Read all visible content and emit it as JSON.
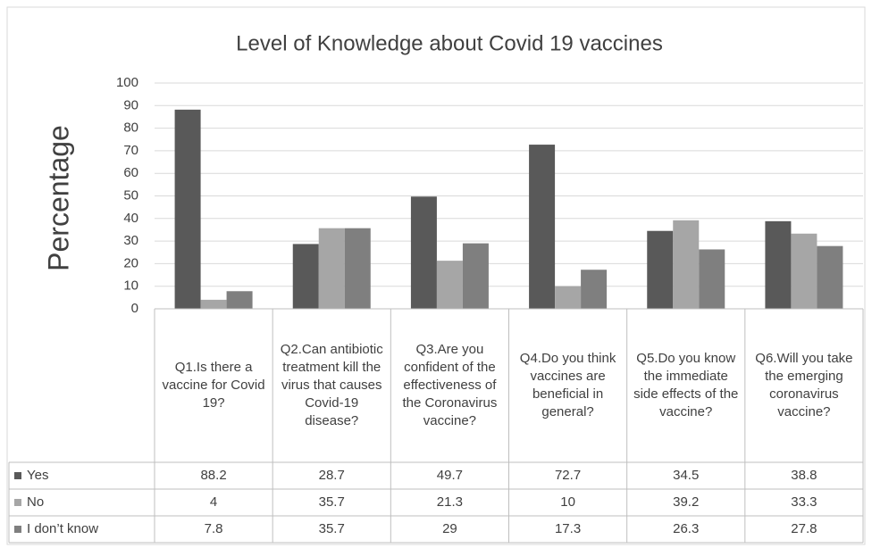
{
  "chart_data": {
    "type": "bar",
    "title": "Level of Knowledge about  Covid 19 vaccines",
    "y_label": "Percentage",
    "categories": [
      "Q1.Is there a vaccine for Covid 19?",
      "Q2.Can antibiotic treatment kill the virus that causes Covid-19 disease?",
      "Q3.Are you confident of the effectiveness of the Coronavirus vaccine?",
      "Q4.Do you think vaccines are beneficial in general?",
      "Q5.Do you know the immediate side effects of the vaccine?",
      "Q6.Will you take the emerging coronavirus vaccine?"
    ],
    "series": [
      {
        "name": "Yes",
        "color": "#595959",
        "values": [
          88.2,
          28.7,
          49.7,
          72.7,
          34.5,
          38.8
        ]
      },
      {
        "name": "No",
        "color": "#a6a6a6",
        "values": [
          4,
          35.7,
          21.3,
          10,
          39.2,
          33.3
        ]
      },
      {
        "name": "I don’t know",
        "color": "#7f7f7f",
        "values": [
          7.8,
          35.7,
          29,
          17.3,
          26.3,
          27.8
        ]
      }
    ],
    "ylim": [
      0,
      100
    ],
    "yticks": [
      0,
      10,
      20,
      30,
      40,
      50,
      60,
      70,
      80,
      90,
      100
    ],
    "grid": true
  }
}
